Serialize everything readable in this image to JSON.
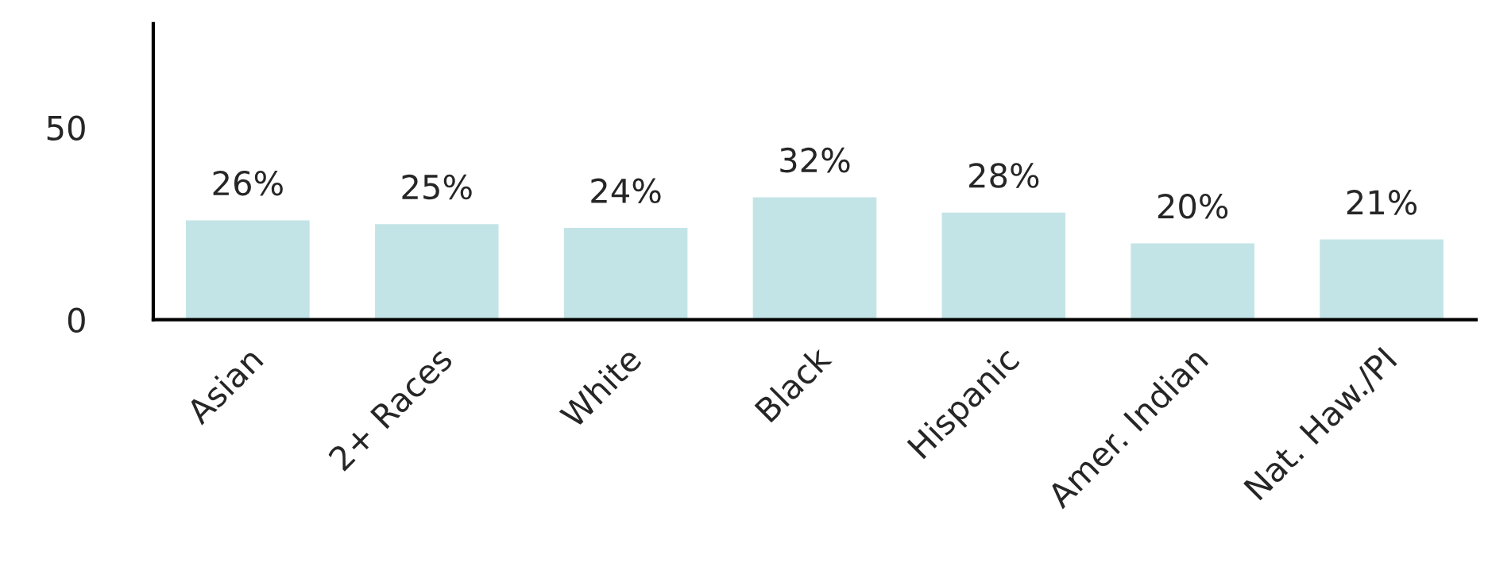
{
  "chart_data": {
    "type": "bar",
    "categories": [
      "Asian",
      "2+ Races",
      "White",
      "Black",
      "Hispanic",
      "Amer. Indian",
      "Nat. Haw./PI"
    ],
    "values": [
      26,
      25,
      24,
      32,
      28,
      20,
      21
    ],
    "value_labels": [
      "26%",
      "25%",
      "24%",
      "32%",
      "28%",
      "20%",
      "21%"
    ],
    "color": "#c3e4e6",
    "ylim": [
      0,
      77
    ],
    "yticks": [
      0,
      50
    ],
    "grid": false,
    "legend": false
  }
}
